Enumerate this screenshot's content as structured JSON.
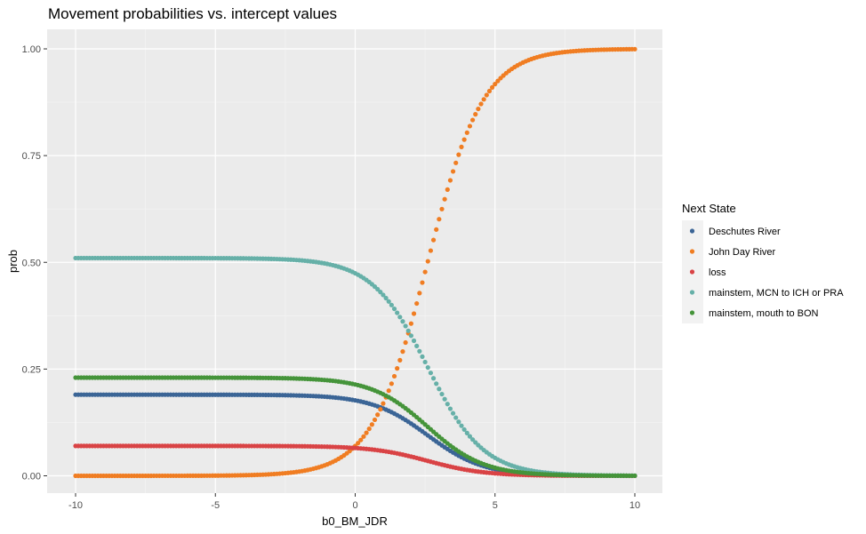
{
  "chart_data": {
    "type": "scatter",
    "title": "Movement probabilities vs. intercept values",
    "xlabel": "b0_BM_JDR",
    "ylabel": "prob",
    "xlim": [
      -10,
      10
    ],
    "ylim": [
      0,
      1
    ],
    "x_ticks": [
      -10,
      -5,
      0,
      5,
      10
    ],
    "y_ticks": [
      0,
      0.25,
      0.5,
      0.75,
      1.0
    ],
    "x_tick_labels": [
      "-10",
      "-5",
      "0",
      "5",
      "10"
    ],
    "y_tick_labels": [
      "0.00",
      "0.25",
      "0.50",
      "0.75",
      "1.00"
    ],
    "x_start": -10,
    "x_step": 0.1,
    "n_points": 201,
    "grid": true,
    "legend": {
      "title": "Next State",
      "position": "right"
    },
    "series": [
      {
        "name": "Deschutes River",
        "color": "#3b6596",
        "baseline_prob": 0.19
      },
      {
        "name": "John Day River",
        "color": "#f07d22",
        "baseline_prob": 0.0
      },
      {
        "name": "loss",
        "color": "#d94345",
        "baseline_prob": 0.07
      },
      {
        "name": "mainstem, MCN to ICH or PRA",
        "color": "#66b0a8",
        "baseline_prob": 0.51
      },
      {
        "name": "mainstem, mouth to BON",
        "color": "#45943a",
        "baseline_prob": 0.23
      }
    ]
  }
}
